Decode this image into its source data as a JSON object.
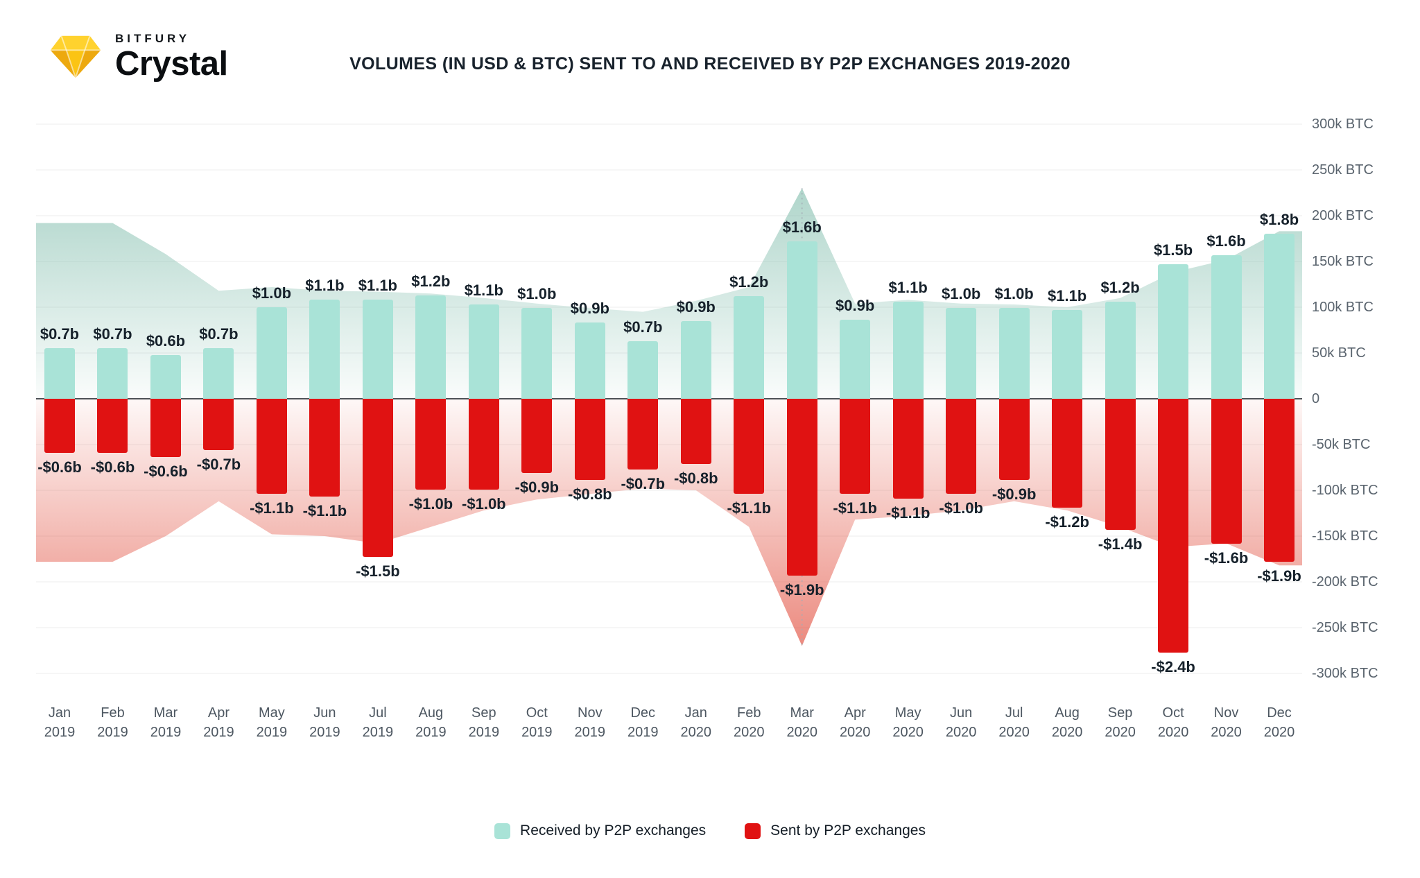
{
  "brand": {
    "top": "BITFURY",
    "name": "Crystal"
  },
  "title": "VOLUMES (IN USD & BTC) SENT TO AND RECEIVED BY P2P EXCHANGES 2019-2020",
  "legend": {
    "received": "Received by P2P exchanges",
    "sent": "Sent by P2P exchanges"
  },
  "colors": {
    "received_bar": "#a9e3d7",
    "sent_bar": "#e01212",
    "received_area": "#7fbcab",
    "sent_area": "#e14b3a",
    "label_text": "#16212b",
    "axis_text": "#5a646e",
    "grid": "#ededed",
    "zero_line": "#4d5257",
    "dropline": "#a3adb4"
  },
  "chart_data": {
    "type": "bar",
    "title": "VOLUMES (IN USD & BTC) SENT TO AND RECEIVED BY P2P EXCHANGES 2019-2020",
    "legend_position": "bottom",
    "grid": "horizontal",
    "y_axis_right": {
      "unit": "BTC",
      "ylim_thousands": [
        -300,
        300
      ],
      "ticks": [
        {
          "value": 300,
          "label": "300k BTC"
        },
        {
          "value": 250,
          "label": "250k BTC"
        },
        {
          "value": 200,
          "label": "200k BTC"
        },
        {
          "value": 150,
          "label": "150k BTC"
        },
        {
          "value": 100,
          "label": "100k BTC"
        },
        {
          "value": 50,
          "label": "50k BTC"
        },
        {
          "value": 0,
          "label": "0"
        },
        {
          "value": -50,
          "label": "-50k BTC"
        },
        {
          "value": -100,
          "label": "-100k BTC"
        },
        {
          "value": -150,
          "label": "-150k BTC"
        },
        {
          "value": -200,
          "label": "-200k BTC"
        },
        {
          "value": -250,
          "label": "-250k BTC"
        },
        {
          "value": -300,
          "label": "-300k BTC"
        }
      ]
    },
    "categories": [
      {
        "month": "Jan",
        "year": "2019"
      },
      {
        "month": "Feb",
        "year": "2019"
      },
      {
        "month": "Mar",
        "year": "2019"
      },
      {
        "month": "Apr",
        "year": "2019"
      },
      {
        "month": "May",
        "year": "2019"
      },
      {
        "month": "Jun",
        "year": "2019"
      },
      {
        "month": "Jul",
        "year": "2019"
      },
      {
        "month": "Aug",
        "year": "2019"
      },
      {
        "month": "Sep",
        "year": "2019"
      },
      {
        "month": "Oct",
        "year": "2019"
      },
      {
        "month": "Nov",
        "year": "2019"
      },
      {
        "month": "Dec",
        "year": "2019"
      },
      {
        "month": "Jan",
        "year": "2020"
      },
      {
        "month": "Feb",
        "year": "2020"
      },
      {
        "month": "Mar",
        "year": "2020"
      },
      {
        "month": "Apr",
        "year": "2020"
      },
      {
        "month": "May",
        "year": "2020"
      },
      {
        "month": "Jun",
        "year": "2020"
      },
      {
        "month": "Jul",
        "year": "2020"
      },
      {
        "month": "Aug",
        "year": "2020"
      },
      {
        "month": "Sep",
        "year": "2020"
      },
      {
        "month": "Oct",
        "year": "2020"
      },
      {
        "month": "Nov",
        "year": "2020"
      },
      {
        "month": "Dec",
        "year": "2020"
      }
    ],
    "series": [
      {
        "name": "Received by P2P exchanges",
        "usd_labels": [
          "$0.7b",
          "$0.7b",
          "$0.6b",
          "$0.7b",
          "$1.0b",
          "$1.1b",
          "$1.1b",
          "$1.2b",
          "$1.1b",
          "$1.0b",
          "$0.9b",
          "$0.7b",
          "$0.9b",
          "$1.2b",
          "$1.6b",
          "$0.9b",
          "$1.1b",
          "$1.0b",
          "$1.0b",
          "$1.1b",
          "$1.2b",
          "$1.5b",
          "$1.6b",
          "$1.8b"
        ],
        "bar_btc_thousands": [
          55,
          55,
          48,
          55,
          100,
          108,
          108,
          113,
          103,
          99,
          83,
          63,
          85,
          112,
          172,
          86,
          106,
          99,
          99,
          97,
          106,
          147,
          157,
          180
        ],
        "area_btc_thousands": [
          192,
          192,
          158,
          118,
          122,
          118,
          117,
          115,
          110,
          104,
          99,
          95,
          107,
          122,
          230,
          104,
          108,
          104,
          103,
          100,
          110,
          138,
          152,
          183
        ]
      },
      {
        "name": "Sent by P2P exchanges",
        "usd_labels": [
          "-$0.6b",
          "-$0.6b",
          "-$0.6b",
          "-$0.7b",
          "-$1.1b",
          "-$1.1b",
          "-$1.5b",
          "-$1.0b",
          "-$1.0b",
          "-$0.9b",
          "-$0.8b",
          "-$0.7b",
          "-$0.8b",
          "-$1.1b",
          "-$1.9b",
          "-$1.1b",
          "-$1.1b",
          "-$1.0b",
          "-$0.9b",
          "-$1.2b",
          "-$1.4b",
          "-$2.4b",
          "-$1.6b",
          "-$1.9b"
        ],
        "bar_btc_thousands": [
          -59,
          -59,
          -64,
          -56,
          -104,
          -107,
          -173,
          -99,
          -99,
          -81,
          -89,
          -77,
          -71,
          -104,
          -193,
          -104,
          -109,
          -104,
          -89,
          -119,
          -143,
          -277,
          -158,
          -178
        ],
        "area_btc_thousands": [
          -178,
          -178,
          -150,
          -112,
          -148,
          -150,
          -158,
          -140,
          -122,
          -110,
          -104,
          -98,
          -100,
          -140,
          -270,
          -132,
          -128,
          -122,
          -112,
          -122,
          -140,
          -162,
          -158,
          -182
        ]
      }
    ]
  }
}
